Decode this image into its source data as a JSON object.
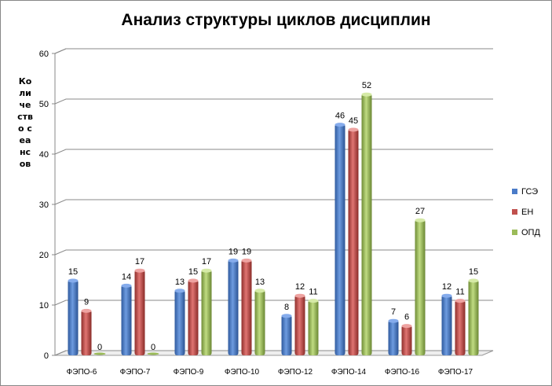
{
  "chart_data": {
    "type": "bar",
    "title": "Анализ структуры циклов дисциплин",
    "xlabel": "",
    "ylabel": "Количество сеансов",
    "ylim": [
      0,
      60
    ],
    "yticks": [
      0,
      10,
      20,
      30,
      40,
      50,
      60
    ],
    "grid": true,
    "legend_position": "right",
    "categories": [
      "ФЭПО-6",
      "ФЭПО-7",
      "ФЭПО-9",
      "ФЭПО-10",
      "ФЭПО-12",
      "ФЭПО-14",
      "ФЭПО-16",
      "ФЭПО-17"
    ],
    "series": [
      {
        "name": "ГСЭ",
        "color": "#4a7bc8",
        "values": [
          15,
          14,
          13,
          19,
          8,
          46,
          7,
          12
        ]
      },
      {
        "name": "ЕН",
        "color": "#c0504d",
        "values": [
          9,
          17,
          15,
          19,
          12,
          45,
          6,
          11
        ]
      },
      {
        "name": "ОПД",
        "color": "#9bbb59",
        "values": [
          0,
          0,
          17,
          13,
          11,
          52,
          27,
          15
        ]
      }
    ]
  }
}
